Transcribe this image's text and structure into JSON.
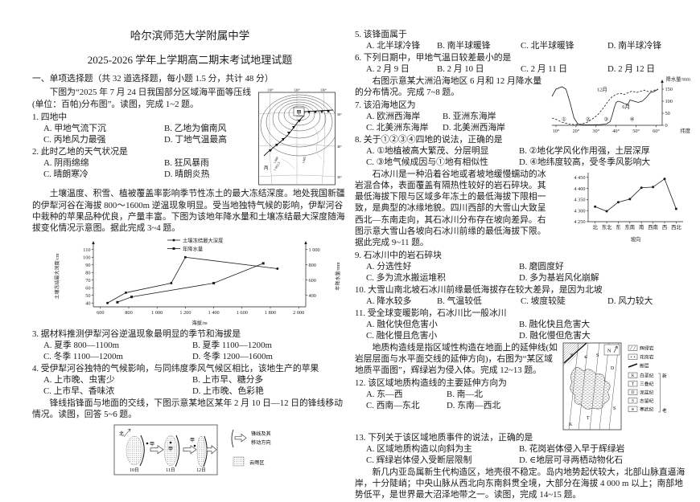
{
  "header": {
    "school": "哈尔滨师范大学附属中学",
    "title": "2025-2026 学年上学期高二期末考试地理试题",
    "section": "一、单项选择题（共 32 道选择题，每小题 1.5 分，共计 48 分）"
  },
  "passages": {
    "p1": "下图为“2025 年 7 月 24 日我国部分区域海平面等压线(单位：百帕)分布图”。读图，完成 1~2 题。",
    "p2": "土壤温度、积雪、植被覆盖率影响季节性冻土的最大冻结深度。地处我国新疆的伊犁河谷在海拔 800～1600m 逆温现象明显。受当地独特气候的影响，伊犁河谷中栽种的苹果品种优良，产量丰富。下图为该地年降水量和土壤冻结最大深度随海拔变化情况示意图。据此完成 3~4 题。",
    "p3": "锋线指锋面与地面的交线，下图示意某地区某年 2 月 10 日—12 日的锋线移动情况。读图，回答 5~6 题。",
    "p4": "右图示意某大洲沿海地区 6 月和 12 月降水量的分布情况。完成 7~8 题。",
    "p5": "石冰川是一种沿着谷地或者坡地缓慢蠕动的冰岩混合体，表面覆盖有隔热性较好的岩石碎块。其最低海拔下限与区域多年冻土的最低海拔下限相一致，是典型的冰缘地貌。四川西部的大雪山大致呈西北—东南走向，其石冰川分布存在坡向差异。右图示意大雪山各坡向石冰川前缘的最低海拔下限。据此完成 9~11 题。",
    "p6": "地质构造线是指区域性构造在地面上的延伸线(如岩层层面与水平面交线的延伸方向)，右图为“某区域地质平面图”，辉绿岩为侵入体。完成 12~13 题。",
    "p7": "新几内亚岛属新生代构造区，地壳很不稳定。岛内地势起伏较大，北部山脉直逼海岸，十分陡峭；中央山脉从西北向东南斜贯全境，大部分在海拔 4 000 m 以上；南部地势低平，是世界最大沼泽地带之一。读图，完成 14~15 题。"
  },
  "questions": [
    {
      "stem": "1. 四地中",
      "options": [
        "A. 甲地气流下沉",
        "B. 乙地为偏南风",
        "C. 丙地风力最强",
        "D. 丁地气温最高"
      ],
      "cols": 2,
      "optw": 150
    },
    {
      "stem": "2. 此时乙地的天气状况是",
      "options": [
        "A. 阴雨绵绵",
        "B. 狂风暴雨",
        "C. 晴朗寒冷",
        "D. 晴朗炎热"
      ],
      "cols": 2,
      "optw": 150
    },
    {
      "stem": "3. 据材料推测伊犁河谷逆温现象最明显的季节和海拔是",
      "options": [
        "A. 夏季 800—1100m",
        "B. 夏季 1100—1200m",
        "C. 冬季 1100—1200m",
        "D. 冬季 1200—1600m"
      ],
      "cols": 2,
      "optw": 185
    },
    {
      "stem": "4. 受伊犁河谷独特的气候影响，与同纬度季风气候区相比，该地生产的苹果",
      "options": [
        "A. 上市晚、虫害少",
        "B. 上市早、糖分多",
        "C. 上市早、香味浓",
        "D. 上市晚、色彩艳"
      ],
      "cols": 2,
      "optw": 185
    },
    {
      "stem": "5. 该锋面属于",
      "options": [
        "A. 北半球冷锋",
        "B. 南半球暖锋",
        "C. 北半球暖锋",
        "D. 南半球冷锋"
      ],
      "cols": 4
    },
    {
      "stem": "6. 下列日期中，甲地气温日较差最小的是",
      "options": [
        "A. 2 月 9 日",
        "B. 2 月 10 日",
        "C. 2 月 11 日",
        "D. 2 月 12 日"
      ],
      "cols": 4
    },
    {
      "stem": "7. 该沿海地区为",
      "options": [
        "A. 欧洲西海岸",
        "B. 亚洲东海岸",
        "C. 北美洲东海岸",
        "D. 北美洲西海岸"
      ],
      "cols": 2,
      "optw": 95
    },
    {
      "stem": "8. 关于①②③④四地的说法，正确的是",
      "options": [
        "A. ①地植被高大繁茂、分层明显",
        "B. ②地化学风化作用强，土层深厚",
        "C. ③地气候成因与①地有相似性",
        "D. ④地纬度较高，受冬季风影响大"
      ],
      "cols": 2,
      "optw": 190
    },
    {
      "stem": "9. 石冰川中的岩石碎块",
      "options": [
        "A. 分选性好",
        "B. 磨圆度好",
        "C. 多为流水搬运堆积",
        "D. 多为基岩风化崩解"
      ],
      "cols": 2,
      "optw": 190
    },
    {
      "stem": "10. 大雪山南北坡石冰川前缘最低海拔存在较大差异，是因为北坡",
      "options": [
        "A. 降水较多",
        "B. 气温较低",
        "C. 坡度较陡",
        "D. 风力较大"
      ],
      "cols": 4
    },
    {
      "stem": "11. 受全球变暖影响，石冰川比一般冰川",
      "options": [
        "A. 融化快但危害小",
        "B. 融化快且危害大",
        "C. 融化慢且危害小",
        "D. 融化慢但危害大"
      ],
      "cols": 2,
      "optw": 190
    },
    {
      "stem": "12. 该区域地质构造线的主要延伸方向为",
      "options": [
        "A. 东—西",
        "B. 南—北",
        "C. 西南—东北",
        "D. 东南—西北"
      ],
      "cols": 2,
      "optw": 100
    },
    {
      "stem": "13. 下列关于该区域地质事件的说法，正确的是",
      "options": [
        "A. 区域地质构造以向斜为主",
        "B. 花岗岩体侵入早于辉绿岩",
        "C. 辉绿岩体侵入受断层限制",
        "D. ∈地层可寻两栖动物化石"
      ],
      "cols": 2,
      "optw": 190
    }
  ],
  "figures": {
    "pressure_map": {
      "lon": [
        "110°",
        "120°",
        "130°"
      ],
      "lat": [
        "50°",
        "40°",
        "30°"
      ],
      "jia": "甲",
      "bing": "丙",
      "iso": [
        "1 000",
        "1 002.5",
        "1 005"
      ]
    },
    "front_diagram": {
      "north": "北",
      "jia": "甲",
      "days": [
        "10日",
        "11日",
        "12日"
      ],
      "legend_front_1": "锋线及其",
      "legend_front_2": "移动方向",
      "legend_cloud": "云雨区"
    },
    "geo_map": {
      "compass": "N",
      "regions": [
        "S",
        "∈",
        "S",
        "D",
        "S",
        "T",
        "K"
      ],
      "legend": [
        {
          "key": "",
          "label": "辉绿岩"
        },
        {
          "key": "",
          "label": "花岗岩"
        },
        {
          "key": "",
          "label": "断层"
        },
        {
          "key": "K",
          "label": "白垩纪"
        },
        {
          "key": "T",
          "label": "三叠纪"
        },
        {
          "key": "D",
          "label": "泥盆纪"
        },
        {
          "key": "S",
          "label": "志留纪"
        },
        {
          "key": "∈",
          "label": "寒武纪"
        }
      ],
      "age_new": "新",
      "age_old": "老"
    }
  },
  "chart_data": [
    {
      "id": "chart-alt",
      "type": "line",
      "xlabel": "海拔/m",
      "ylabel_left": "土壤冻结最大深度/cm",
      "ylabel_right": "年降水量/mm",
      "xlim": [
        550,
        2050
      ],
      "x_ticks": [
        600,
        800,
        1000,
        1200,
        1400,
        1600,
        1800,
        2000
      ],
      "x_tick_labels": [
        "600",
        "800",
        "1 000",
        "1 200",
        "1 400",
        "1 600",
        "1 800",
        "2 000"
      ],
      "ylim_left": [
        35,
        115
      ],
      "y_ticks_left": [
        40,
        50,
        60,
        70,
        80,
        90,
        100,
        110
      ],
      "ylim_right": [
        250,
        1050
      ],
      "y_ticks_right": [
        400,
        600,
        800,
        1000
      ],
      "y_tick_labels_right": [
        "400",
        "600",
        "800",
        "1 000"
      ],
      "series": [
        {
          "name": "土壤冻结最大深度",
          "axis": "left",
          "marker": "dot",
          "x": [
            650,
            780,
            1100,
            1200,
            1850
          ],
          "y": [
            40,
            53.5,
            66,
            100,
            85
          ]
        },
        {
          "name": "年降水量",
          "axis": "right",
          "marker": "square",
          "x": [
            720,
            820,
            1400,
            1750
          ],
          "y": [
            310,
            380,
            560,
            820
          ]
        }
      ]
    },
    {
      "id": "chart-coast",
      "type": "line",
      "ylabel": "降水量/mm",
      "xlabel": "纬度",
      "xlim": [
        8,
        63
      ],
      "x_ticks": [
        10,
        20,
        30,
        40,
        50,
        60
      ],
      "x_tick_labels": [
        "10°",
        "20°",
        "30°",
        "40°",
        "50°",
        "60°"
      ],
      "ylim": [
        0,
        170
      ],
      "y_ticks": [
        0,
        50,
        100,
        150
      ],
      "series": [
        {
          "name": "6月",
          "style": "solid",
          "x": [
            8,
            10,
            13,
            15,
            17,
            19,
            21,
            24,
            28,
            32,
            35,
            37,
            38,
            39,
            40,
            41,
            43,
            44,
            46,
            47,
            49,
            51,
            53,
            55,
            57,
            59,
            61
          ],
          "y": [
            120,
            150,
            160,
            150,
            95,
            30,
            5,
            2,
            2,
            3,
            5,
            15,
            40,
            70,
            95,
            100,
            95,
            90,
            88,
            105,
            100,
            95,
            100,
            115,
            135,
            140,
            150
          ]
        },
        {
          "name": "12月",
          "style": "dashed",
          "x": [
            8,
            10,
            13,
            16,
            19,
            22,
            25,
            28,
            31,
            34,
            36,
            38,
            40,
            42,
            44,
            46,
            48,
            50,
            52,
            54,
            56,
            58,
            61
          ],
          "y": [
            30,
            25,
            13,
            6,
            3,
            4,
            10,
            25,
            45,
            75,
            100,
            118,
            128,
            133,
            128,
            135,
            142,
            136,
            140,
            146,
            140,
            143,
            150
          ]
        }
      ],
      "annotations": [
        {
          "text": "①",
          "x": 14,
          "y": 18
        },
        {
          "text": "②",
          "x": 26,
          "y": 18
        },
        {
          "text": "③",
          "x": 35,
          "y": 18
        },
        {
          "text": "④",
          "x": 48,
          "y": 18
        },
        {
          "text": "12月",
          "x": 33,
          "y": 142
        },
        {
          "text": "6月",
          "x": 45,
          "y": 70
        }
      ]
    },
    {
      "id": "chart-slope",
      "type": "line",
      "categories": [
        "北",
        "东北",
        "东",
        "东南",
        "南",
        "西南",
        "西",
        "西北"
      ],
      "values": [
        4318,
        4297,
        4338,
        4352,
        4403,
        4406,
        4443,
        4308
      ],
      "ylabel": "石冰川前缘最低海拔下限/m",
      "xlabel": "坡向",
      "ylim": [
        4250,
        4460
      ],
      "y_ticks": [
        4250,
        4300,
        4350,
        4400,
        4450
      ],
      "y_tick_labels": [
        "4 250",
        "4 300",
        "4 350",
        "4 400",
        "4 450"
      ]
    }
  ]
}
